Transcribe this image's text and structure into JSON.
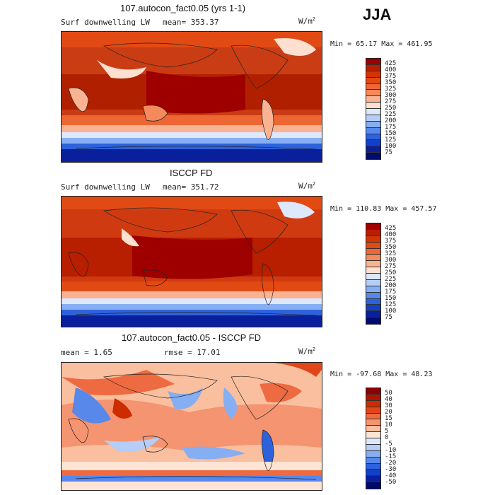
{
  "season": "JJA",
  "panels": [
    {
      "title": "107.autocon_fact0.05 (yrs 1-1)",
      "variable": "Surf downwelling LW",
      "stat": "mean=  353.37",
      "units": "W/m",
      "units_exp": "2",
      "minmax": "Min =  65.17 Max =  461.95",
      "levels": [
        "425",
        "400",
        "375",
        "350",
        "325",
        "300",
        "275",
        "250",
        "225",
        "200",
        "175",
        "150",
        "125",
        "100",
        "75"
      ],
      "colors": [
        "#9e0000",
        "#b81e00",
        "#d13500",
        "#e24a14",
        "#ee6633",
        "#f48a5c",
        "#f9b393",
        "#fde0cf",
        "#dde8fb",
        "#b5cdf7",
        "#86aef2",
        "#5788ea",
        "#2e62dc",
        "#1240c6",
        "#0a1f9c",
        "#000b6e"
      ]
    },
    {
      "title": "ISCCP FD",
      "variable": "Surf downwelling LW",
      "stat": "mean= 351.72",
      "units": "W/m",
      "units_exp": "2",
      "minmax": "Min = 110.83 Max = 457.57",
      "levels": [
        "425",
        "400",
        "375",
        "350",
        "325",
        "300",
        "275",
        "250",
        "225",
        "200",
        "175",
        "150",
        "125",
        "100",
        "75"
      ],
      "colors": [
        "#9e0000",
        "#b81e00",
        "#d13500",
        "#e24a14",
        "#ee6633",
        "#f48a5c",
        "#f9b393",
        "#fde0cf",
        "#dde8fb",
        "#b5cdf7",
        "#86aef2",
        "#5788ea",
        "#2e62dc",
        "#1240c6",
        "#0a1f9c",
        "#000b6e"
      ]
    },
    {
      "title": "107.autocon_fact0.05 - ISCCP FD",
      "stat": "mean =    1.65",
      "stat2": "rmse =  17.01",
      "units": "W/m",
      "units_exp": "2",
      "minmax": "Min = -97.68 Max =  48.23",
      "levels": [
        "50",
        "40",
        "30",
        "20",
        "15",
        "10",
        "5",
        "0",
        "-5",
        "-10",
        "-15",
        "-20",
        "-30",
        "-40",
        "-50"
      ],
      "colors": [
        "#8c0000",
        "#b01400",
        "#cc2c00",
        "#e0461a",
        "#ee6a40",
        "#f59470",
        "#fabf9f",
        "#fde4d4",
        "#dde8fb",
        "#b5cdf7",
        "#86aef2",
        "#5788ea",
        "#2e62dc",
        "#1240c6",
        "#0a1f9c",
        "#00086a"
      ]
    }
  ]
}
